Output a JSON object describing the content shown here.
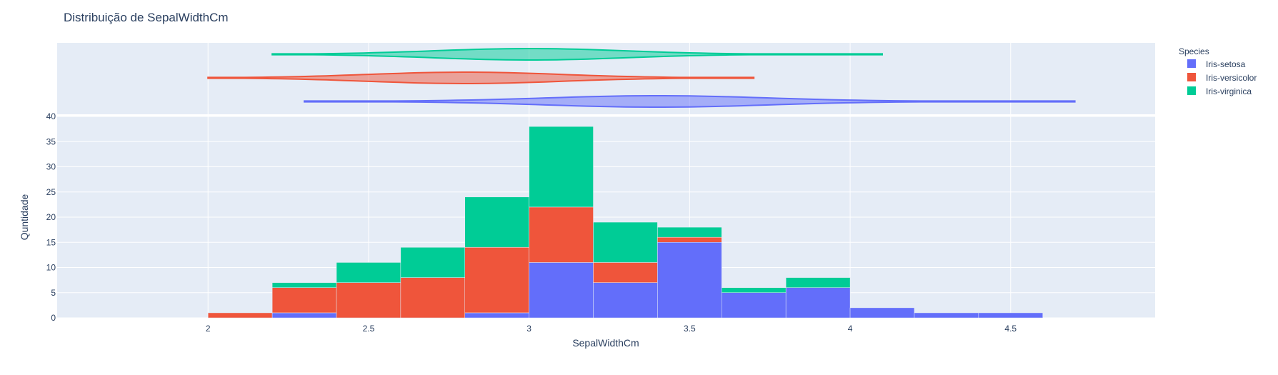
{
  "chart_data": {
    "type": "bar",
    "title": "Distribuição de SepalWidthCm",
    "xlabel": "SepalWidthCm",
    "ylabel": "Quntidade",
    "xlim": [
      1.53,
      4.95
    ],
    "ylim": [
      0,
      40
    ],
    "x_ticks": [
      "2",
      "2.5",
      "3",
      "3.5",
      "4",
      "4.5"
    ],
    "y_ticks": [
      "0",
      "5",
      "10",
      "15",
      "20",
      "25",
      "30",
      "35",
      "40"
    ],
    "bin_width": 0.2,
    "bin_starts": [
      2.0,
      2.2,
      2.4,
      2.6,
      2.8,
      3.0,
      3.2,
      3.4,
      3.6,
      3.8,
      4.0,
      4.2,
      4.4
    ],
    "barmode": "stack",
    "grid": true,
    "legend_title": "Species",
    "legend_position": "top-right",
    "series": [
      {
        "name": "Iris-setosa",
        "color": "#636efa",
        "values": [
          0,
          1,
          0,
          0,
          1,
          11,
          7,
          15,
          5,
          6,
          2,
          1,
          1
        ]
      },
      {
        "name": "Iris-versicolor",
        "color": "#EF553B",
        "values": [
          1,
          5,
          7,
          8,
          13,
          11,
          4,
          1,
          0,
          0,
          0,
          0,
          0
        ]
      },
      {
        "name": "Iris-virginica",
        "color": "#00cc96",
        "values": [
          0,
          1,
          4,
          6,
          10,
          16,
          8,
          2,
          1,
          2,
          0,
          0,
          0
        ]
      }
    ],
    "violins": [
      {
        "name": "Iris-virginica",
        "color": "#00cc96",
        "range": [
          2.2,
          4.1
        ],
        "center": 3.0,
        "sd": 0.3
      },
      {
        "name": "Iris-versicolor",
        "color": "#EF553B",
        "range": [
          2.0,
          3.7
        ],
        "center": 2.8,
        "sd": 0.3
      },
      {
        "name": "Iris-setosa",
        "color": "#636efa",
        "range": [
          2.3,
          4.7
        ],
        "center": 3.4,
        "sd": 0.35
      }
    ]
  }
}
